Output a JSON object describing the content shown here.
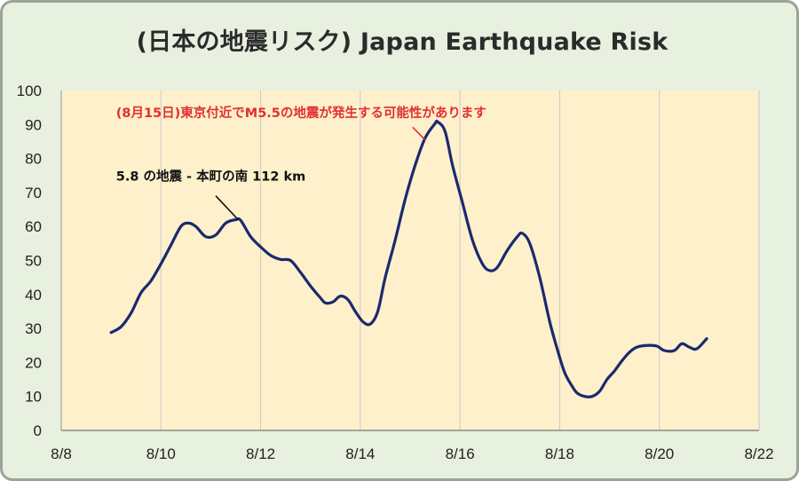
{
  "chart_data": {
    "type": "line",
    "title": "(日本の地震リスク) Japan Earthquake Risk",
    "xlabel": "",
    "ylabel": "",
    "xlim": [
      "8/8",
      "8/22"
    ],
    "ylim": [
      0,
      100
    ],
    "x_ticks": [
      "8/8",
      "8/10",
      "8/12",
      "8/14",
      "8/16",
      "8/18",
      "8/20",
      "8/22"
    ],
    "y_ticks": [
      0,
      10,
      20,
      30,
      40,
      50,
      60,
      70,
      80,
      90,
      100
    ],
    "grid": "vertical",
    "series": [
      {
        "color": "#1a2a6e",
        "points": [
          [
            9.0,
            28.8
          ],
          [
            9.2,
            30.5
          ],
          [
            9.4,
            34.5
          ],
          [
            9.6,
            40.5
          ],
          [
            9.8,
            44.0
          ],
          [
            10.0,
            49.0
          ],
          [
            10.2,
            54.5
          ],
          [
            10.4,
            60.0
          ],
          [
            10.55,
            61.0
          ],
          [
            10.7,
            60.0
          ],
          [
            10.9,
            57.0
          ],
          [
            11.1,
            57.5
          ],
          [
            11.3,
            61.0
          ],
          [
            11.5,
            62.0
          ],
          [
            11.6,
            61.8
          ],
          [
            11.8,
            57.0
          ],
          [
            12.0,
            54.0
          ],
          [
            12.2,
            51.5
          ],
          [
            12.4,
            50.3
          ],
          [
            12.6,
            50.0
          ],
          [
            12.8,
            46.5
          ],
          [
            13.0,
            42.5
          ],
          [
            13.2,
            39.0
          ],
          [
            13.3,
            37.5
          ],
          [
            13.45,
            37.8
          ],
          [
            13.6,
            39.5
          ],
          [
            13.75,
            38.5
          ],
          [
            13.9,
            35.0
          ],
          [
            14.05,
            32.0
          ],
          [
            14.2,
            31.3
          ],
          [
            14.35,
            35.0
          ],
          [
            14.5,
            45.0
          ],
          [
            14.7,
            56.0
          ],
          [
            14.9,
            68.0
          ],
          [
            15.1,
            78.0
          ],
          [
            15.3,
            86.0
          ],
          [
            15.5,
            90.3
          ],
          [
            15.55,
            90.8
          ],
          [
            15.7,
            88.0
          ],
          [
            15.85,
            78.0
          ],
          [
            16.05,
            67.0
          ],
          [
            16.25,
            56.0
          ],
          [
            16.45,
            49.0
          ],
          [
            16.6,
            47.0
          ],
          [
            16.75,
            48.0
          ],
          [
            16.95,
            53.0
          ],
          [
            17.15,
            57.0
          ],
          [
            17.25,
            58.0
          ],
          [
            17.4,
            55.0
          ],
          [
            17.6,
            45.0
          ],
          [
            17.8,
            32.0
          ],
          [
            17.95,
            24.0
          ],
          [
            18.1,
            17.0
          ],
          [
            18.25,
            13.0
          ],
          [
            18.35,
            11.0
          ],
          [
            18.5,
            10.0
          ],
          [
            18.65,
            10.0
          ],
          [
            18.8,
            11.5
          ],
          [
            18.95,
            15.0
          ],
          [
            19.1,
            17.5
          ],
          [
            19.25,
            20.5
          ],
          [
            19.4,
            23.0
          ],
          [
            19.55,
            24.5
          ],
          [
            19.75,
            25.0
          ],
          [
            19.95,
            24.8
          ],
          [
            20.1,
            23.5
          ],
          [
            20.3,
            23.5
          ],
          [
            20.45,
            25.5
          ],
          [
            20.6,
            24.5
          ],
          [
            20.75,
            24.0
          ],
          [
            20.95,
            27.0
          ]
        ]
      }
    ],
    "annotations": [
      {
        "text": "5.8 の地震 - 本町の南 112 km",
        "color": "#111111",
        "text_at": [
          9.1,
          73.5
        ],
        "line_from": [
          11.1,
          69.0
        ],
        "line_to": [
          11.55,
          62.0
        ]
      },
      {
        "text": "(8月15日)東京付近でM5.5の地震が発生する可能性があります",
        "color": "#e03030",
        "text_at": [
          9.1,
          92.2
        ],
        "line_from": [
          15.05,
          89.2
        ],
        "line_to": [
          15.3,
          85.5
        ]
      }
    ]
  },
  "colors": {
    "plot_background": "#fff0cc",
    "outer_background": "#e8f0df",
    "line": "#1a2a6e",
    "grid": "#c9c9c9",
    "annotation_red": "#e03030"
  }
}
